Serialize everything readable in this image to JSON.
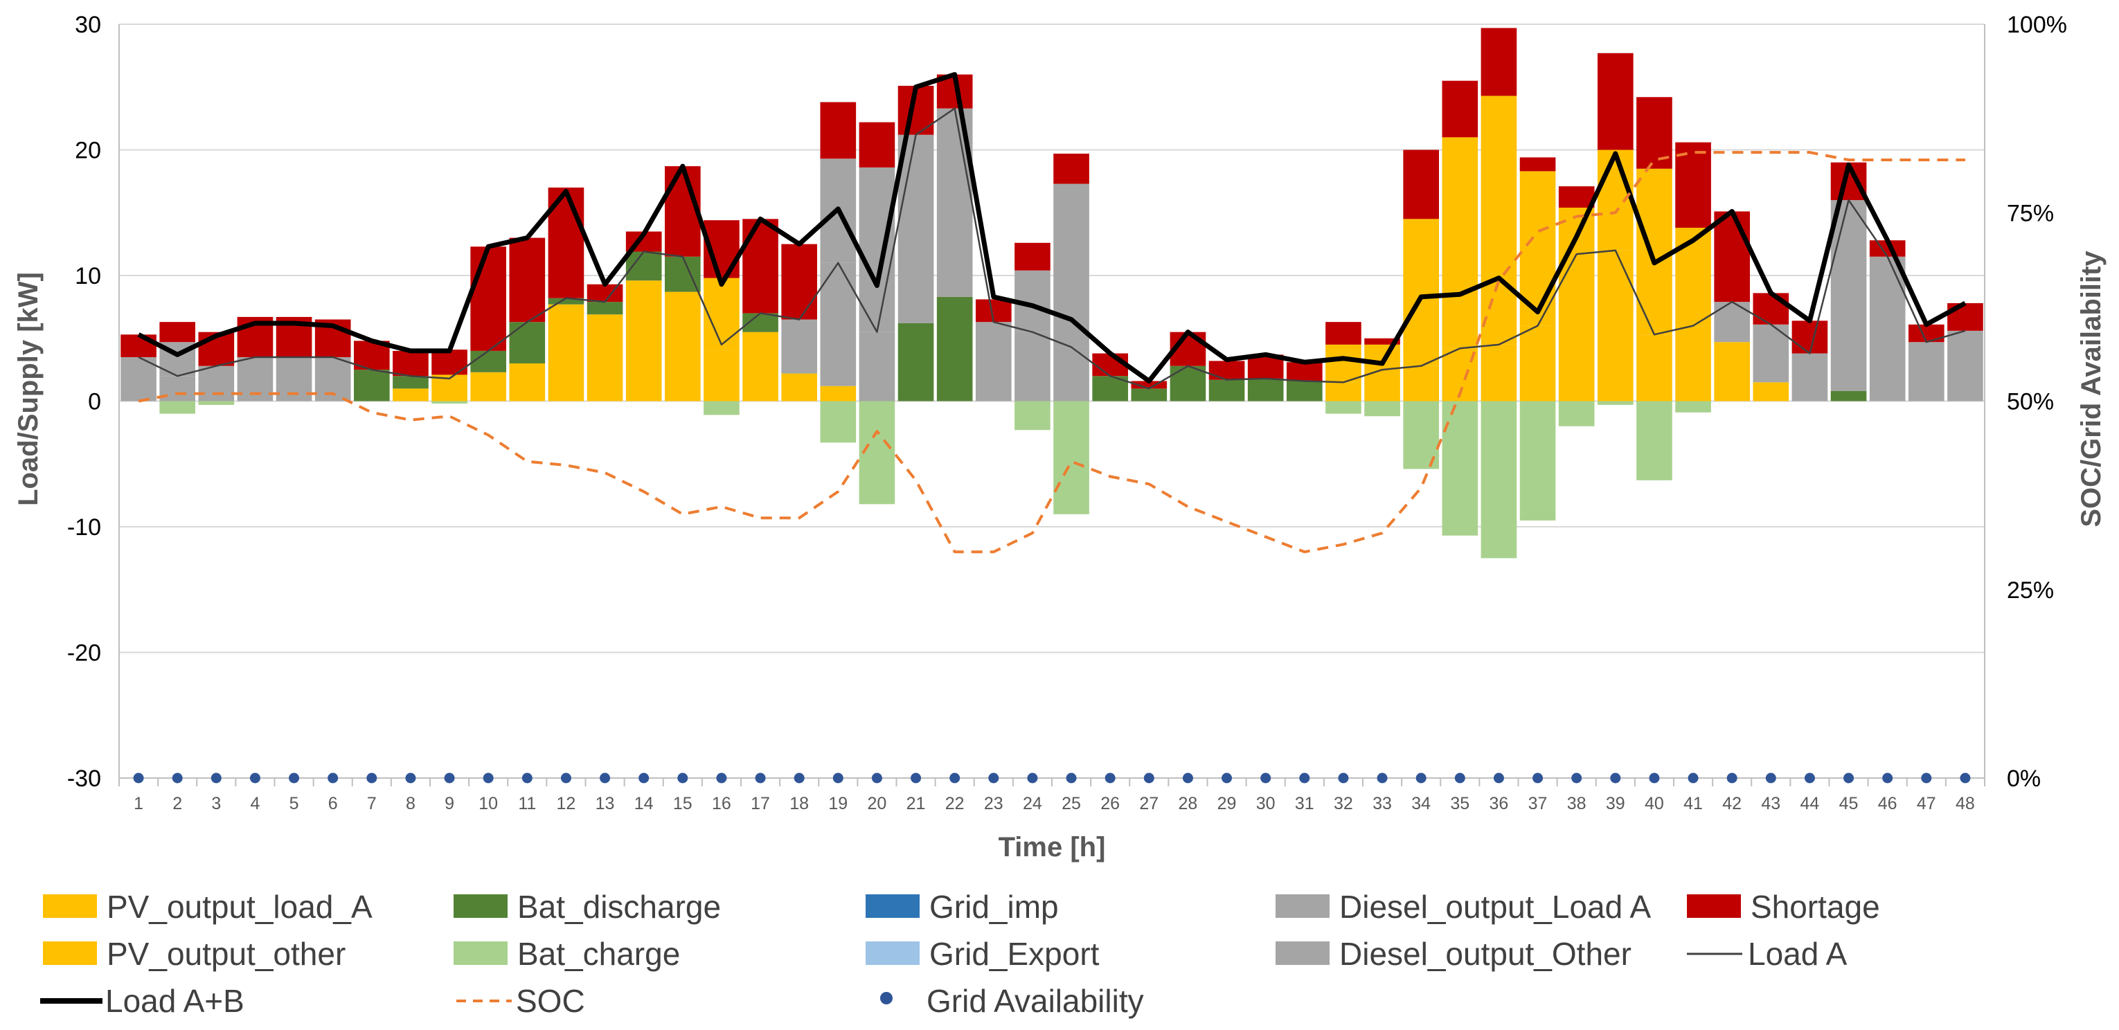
{
  "chart_data": {
    "type": "bar",
    "xlabel": "Time [h]",
    "ylabel": "Load/Supply [kW]",
    "y2label": "SOC/Grid Availability",
    "ylim": [
      -30,
      30
    ],
    "yticks": [
      "30",
      "20",
      "10",
      "0",
      "-10",
      "-20",
      "-30"
    ],
    "y2lim": [
      0,
      100
    ],
    "y2ticks": [
      "100%",
      "75%",
      "50%",
      "25%",
      "0%"
    ],
    "grid": true,
    "legend_position": "bottom",
    "categories": [
      "1",
      "2",
      "3",
      "4",
      "5",
      "6",
      "7",
      "8",
      "9",
      "10",
      "11",
      "12",
      "13",
      "14",
      "15",
      "16",
      "17",
      "18",
      "19",
      "20",
      "21",
      "22",
      "23",
      "24",
      "25",
      "26",
      "27",
      "28",
      "29",
      "30",
      "31",
      "32",
      "33",
      "34",
      "35",
      "36",
      "37",
      "38",
      "39",
      "40",
      "41",
      "42",
      "43",
      "44",
      "45",
      "46",
      "47",
      "48"
    ],
    "series": [
      {
        "name": "PV_output_load_A",
        "kind": "stack-pos",
        "color": "#ffc000",
        "values": [
          0,
          0,
          0,
          0,
          0,
          0,
          0,
          1,
          1.8,
          2.3,
          3,
          7.7,
          6.9,
          9.6,
          8.7,
          4,
          5.5,
          2.2,
          1.2,
          0,
          0,
          0,
          0,
          0,
          0,
          0,
          0,
          0,
          0,
          0,
          0,
          1.5,
          2.5,
          2.8,
          4.2,
          4.5,
          6,
          11.7,
          12,
          5.3,
          6,
          4.7,
          1.5,
          0,
          0,
          0,
          0,
          0
        ]
      },
      {
        "name": "PV_output_other",
        "kind": "stack-pos",
        "color": "#ffc000",
        "values": [
          0,
          0,
          0,
          0,
          0,
          0,
          0,
          0,
          0.3,
          0,
          0,
          0,
          0,
          0,
          0,
          5.8,
          0,
          0,
          0,
          0,
          0,
          0,
          0,
          0,
          0,
          0,
          0,
          0,
          0,
          0,
          0,
          3,
          2,
          11.7,
          16.8,
          19.8,
          12.3,
          3.7,
          8,
          13.2,
          7.8,
          0,
          0,
          0,
          0,
          0,
          0,
          0
        ]
      },
      {
        "name": "Bat_discharge",
        "kind": "stack-pos",
        "color": "#548235",
        "values": [
          0,
          0,
          0,
          0,
          0,
          0,
          2.5,
          1,
          0,
          1.7,
          3.3,
          0.5,
          1,
          2.3,
          2.8,
          0,
          1.5,
          0,
          0,
          0,
          6.2,
          8.3,
          0,
          0,
          0,
          2,
          1,
          2.8,
          1.7,
          1.8,
          1.6,
          0,
          0,
          0,
          0,
          0,
          0,
          0,
          0,
          0,
          0,
          0,
          0,
          0,
          0.8,
          0,
          0,
          0
        ]
      },
      {
        "name": "Grid_imp",
        "kind": "stack-pos",
        "color": "#2e75b6",
        "values": [
          0,
          0,
          0,
          0,
          0,
          0,
          0,
          0,
          0,
          0,
          0,
          0,
          0,
          0,
          0,
          0,
          0,
          0,
          0,
          0,
          0,
          0,
          0,
          0,
          0,
          0,
          0,
          0,
          0,
          0,
          0,
          0,
          0,
          0,
          0,
          0,
          0,
          0,
          0,
          0,
          0,
          0,
          0,
          0,
          0,
          0,
          0,
          0
        ]
      },
      {
        "name": "Diesel_output_Load A",
        "kind": "stack-pos",
        "color": "#a5a5a5",
        "values": [
          3.5,
          2,
          2.8,
          3.5,
          3.5,
          3.5,
          0,
          0,
          0,
          0,
          0,
          0,
          0,
          0,
          0,
          0,
          0,
          4.3,
          9.8,
          5.5,
          15,
          15,
          6.3,
          5.5,
          4.3,
          0,
          0,
          0,
          0,
          0,
          0,
          0,
          0,
          0,
          0,
          0,
          0,
          0,
          0,
          0,
          0,
          3.2,
          4.6,
          3.8,
          15.2,
          11.5,
          4.7,
          5.6
        ]
      },
      {
        "name": "Diesel_output_Other",
        "kind": "stack-pos",
        "color": "#a5a5a5",
        "values": [
          0,
          2.7,
          0,
          0,
          0,
          0,
          0,
          0,
          0,
          0,
          0,
          0,
          0,
          0,
          0,
          0,
          0,
          0,
          8.3,
          13.1,
          0,
          0,
          0,
          4.9,
          13,
          0,
          0,
          0,
          0,
          0,
          0,
          0,
          0,
          0,
          0,
          0,
          0,
          0,
          0,
          0,
          0,
          0,
          0,
          0,
          0,
          0,
          0,
          0
        ]
      },
      {
        "name": "Shortage",
        "kind": "stack-pos",
        "color": "#c00000",
        "values": [
          1.8,
          1.6,
          2.7,
          3.2,
          3.2,
          3,
          2.3,
          2,
          2,
          8.3,
          6.7,
          8.8,
          1.4,
          1.6,
          7.2,
          4.6,
          7.5,
          6,
          4.5,
          3.6,
          3.9,
          2.7,
          1.8,
          2.2,
          2.4,
          1.8,
          0.6,
          2.7,
          1.5,
          1.9,
          1.5,
          1.8,
          0.5,
          5.5,
          4.5,
          5.4,
          1.1,
          1.7,
          7.7,
          5.7,
          6.8,
          7.2,
          2.5,
          2.6,
          3,
          1.3,
          1.4,
          2.2
        ]
      },
      {
        "name": "Bat_charge",
        "kind": "stack-neg",
        "color": "#a9d18e",
        "values": [
          0,
          -1,
          -0.3,
          0,
          0,
          0,
          0,
          0,
          -0.2,
          0,
          0,
          0,
          0,
          0,
          0,
          -1.1,
          0,
          0,
          -3.3,
          -8.2,
          0,
          0,
          0,
          -2.3,
          -9,
          0,
          0,
          0,
          0,
          0,
          0,
          -1,
          -1.2,
          -5.4,
          -10.7,
          -12.5,
          -9.5,
          -2,
          -0.3,
          -6.3,
          -0.9,
          0,
          0,
          0,
          0,
          0,
          0,
          0
        ]
      },
      {
        "name": "Grid_Export",
        "kind": "stack-neg",
        "color": "#9dc3e6",
        "values": [
          0,
          0,
          0,
          0,
          0,
          0,
          0,
          0,
          0,
          0,
          0,
          0,
          0,
          0,
          0,
          0,
          0,
          0,
          0,
          0,
          0,
          0,
          0,
          0,
          0,
          0,
          0,
          0,
          0,
          0,
          0,
          0,
          0,
          0,
          0,
          0,
          0,
          0,
          0,
          0,
          0,
          0,
          0,
          0,
          0,
          0,
          0,
          0
        ]
      },
      {
        "name": "Load A",
        "kind": "line",
        "color": "#404040",
        "values": [
          3.5,
          2,
          2.8,
          3.5,
          3.5,
          3.5,
          2.5,
          2,
          1.8,
          4,
          6.3,
          8.2,
          7.9,
          11.9,
          11.5,
          4.5,
          7,
          6.5,
          11,
          5.5,
          21.2,
          23.3,
          6.3,
          5.5,
          4.3,
          2,
          1,
          2.8,
          1.7,
          1.8,
          1.6,
          1.5,
          2.5,
          2.8,
          4.2,
          4.5,
          6,
          11.7,
          12,
          5.3,
          6,
          7.9,
          6.1,
          3.8,
          16,
          11.5,
          4.7,
          5.6
        ]
      },
      {
        "name": "Load A+B",
        "kind": "line",
        "color": "#000000",
        "values": [
          5.3,
          3.7,
          5.2,
          6.2,
          6.2,
          6,
          4.8,
          4,
          4,
          12.3,
          13,
          16.7,
          9.3,
          13.3,
          18.7,
          9.3,
          14.5,
          12.5,
          15.3,
          9.2,
          25,
          26,
          8.3,
          7.6,
          6.5,
          3.8,
          1.6,
          5.5,
          3.3,
          3.7,
          3.1,
          3.4,
          3,
          8.3,
          8.5,
          9.8,
          7.1,
          13.1,
          19.7,
          11,
          12.8,
          15.1,
          8.6,
          6.4,
          18.8,
          12.8,
          6.1,
          7.8
        ]
      },
      {
        "name": "SOC",
        "kind": "line-y2",
        "color": "#ed7d31",
        "values": [
          50,
          51,
          51,
          51,
          51,
          51,
          48.5,
          47.5,
          48,
          45.5,
          42,
          41.5,
          40.5,
          38,
          35,
          36,
          34.5,
          34.5,
          38,
          46,
          39.5,
          30,
          30,
          32.5,
          42,
          40,
          39,
          36,
          34,
          32,
          30,
          31,
          32.5,
          38.5,
          51,
          66,
          72.5,
          74.5,
          75,
          82,
          83,
          83,
          83,
          83,
          82,
          82,
          82,
          82
        ]
      },
      {
        "name": "Grid Availability",
        "kind": "markers-y2",
        "color": "#2f5597",
        "values": [
          0,
          0,
          0,
          0,
          0,
          0,
          0,
          0,
          0,
          0,
          0,
          0,
          0,
          0,
          0,
          0,
          0,
          0,
          0,
          0,
          0,
          0,
          0,
          0,
          0,
          0,
          0,
          0,
          0,
          0,
          0,
          0,
          0,
          0,
          0,
          0,
          0,
          0,
          0,
          0,
          0,
          0,
          0,
          0,
          0,
          0,
          0,
          0
        ]
      }
    ],
    "legend": [
      {
        "label": "PV_output_load_A",
        "style": "box",
        "color": "#ffc000"
      },
      {
        "label": "Bat_discharge",
        "style": "box",
        "color": "#548235"
      },
      {
        "label": "Grid_imp",
        "style": "box",
        "color": "#2e75b6"
      },
      {
        "label": "Diesel_output_Load A",
        "style": "box",
        "color": "#a5a5a5"
      },
      {
        "label": "Shortage",
        "style": "box",
        "color": "#c00000"
      },
      {
        "label": "PV_output_other",
        "style": "box",
        "color": "#ffc000"
      },
      {
        "label": "Bat_charge",
        "style": "box",
        "color": "#a9d18e"
      },
      {
        "label": "Grid_Export",
        "style": "box",
        "color": "#9dc3e6"
      },
      {
        "label": "Diesel_output_Other",
        "style": "box",
        "color": "#a5a5a5"
      },
      {
        "label": "Load A",
        "style": "thin-line",
        "color": "#404040"
      },
      {
        "label": "Load A+B",
        "style": "thick-line",
        "color": "#000000"
      },
      {
        "label": "SOC",
        "style": "dash-line",
        "color": "#ed7d31"
      },
      {
        "label": "Grid Availability",
        "style": "dot",
        "color": "#2f5597"
      }
    ]
  }
}
